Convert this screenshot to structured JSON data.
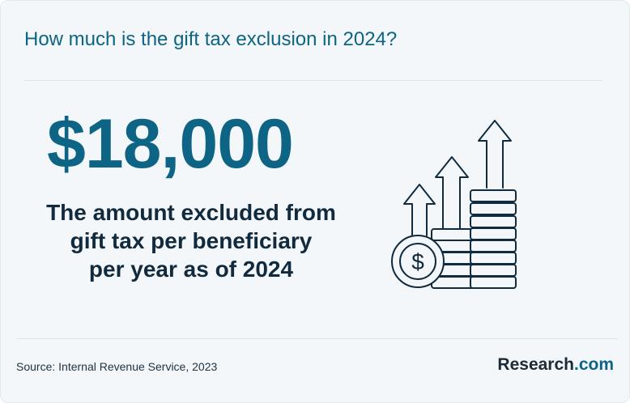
{
  "header": {
    "title": "How much is the gift tax exclusion in 2024?"
  },
  "stat": {
    "value": "$18,000",
    "description_lines": [
      "The amount excluded from",
      "gift tax per beneficiary",
      "per year as of 2024"
    ]
  },
  "illustration": {
    "icon": "rising-coin-stacks-with-arrows-icon",
    "coin_symbol": "$"
  },
  "footer": {
    "source": "Source: Internal Revenue Service, 2023",
    "logo_main": "Research",
    "logo_suffix": ".com"
  },
  "colors": {
    "accent": "#0d6485",
    "text_dark": "#112a3d",
    "background": "#f3f7f9",
    "icon_stroke": "#102b3f"
  }
}
